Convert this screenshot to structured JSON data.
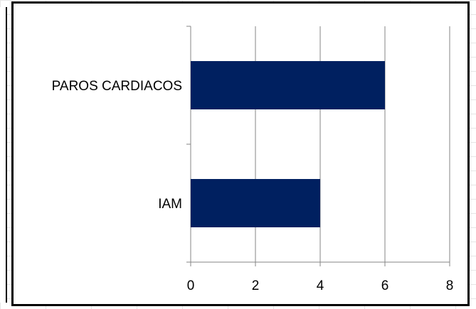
{
  "chart_data": {
    "type": "bar",
    "orientation": "horizontal",
    "categories": [
      "PAROS CARDIACOS",
      "IAM"
    ],
    "values": [
      6,
      4
    ],
    "xlim": [
      0,
      8
    ],
    "x_ticks": [
      "0",
      "2",
      "4",
      "6",
      "8"
    ],
    "grid": "vertical",
    "bar_color": "#002060",
    "legend": "none"
  }
}
